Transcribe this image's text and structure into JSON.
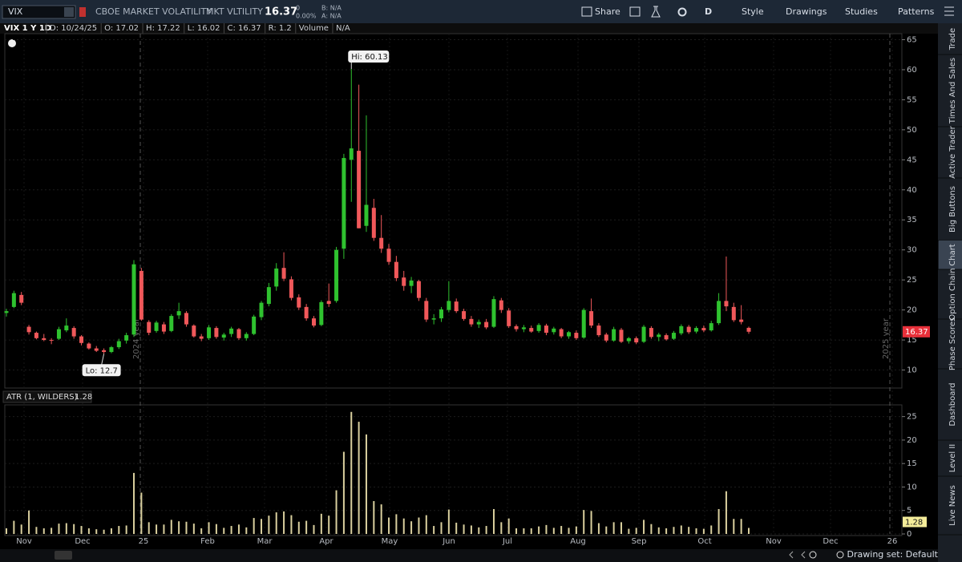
{
  "toolbar": {
    "symbol": "VIX",
    "description": "CBOE MARKET VOLATILITY",
    "exchange": "MKT VLTILITY",
    "last": "16.37",
    "change": "0",
    "change_pct": "0.00%",
    "bid": "B: N/A",
    "ask": "A: N/A",
    "buttons": [
      "Share",
      "D",
      "Style",
      "Drawings",
      "Studies",
      "Patterns"
    ]
  },
  "chart_data": [
    {
      "type": "candlestick",
      "title": "VIX 1 Y 1D",
      "info": [
        "D: 10/24/25",
        "O: 17.02",
        "H: 17.22",
        "L: 16.02",
        "C: 16.37",
        "R: 1.2",
        "Volume",
        "N/A"
      ],
      "ohlc": [
        [
          19.5,
          20.2,
          18.9,
          19.8
        ],
        [
          20.5,
          23.2,
          20.3,
          22.8
        ],
        [
          22.5,
          23,
          20.8,
          21.2
        ],
        [
          17.2,
          17.5,
          15.9,
          16.3
        ],
        [
          16.2,
          16.4,
          15.1,
          15.3
        ],
        [
          15.3,
          16,
          14.8,
          15.0
        ],
        [
          15.0,
          15.3,
          14.3,
          14.9
        ],
        [
          15.2,
          17.2,
          15.0,
          16.8
        ],
        [
          16.6,
          18.6,
          16.3,
          17.4
        ],
        [
          17.0,
          17.3,
          15.2,
          15.6
        ],
        [
          15.6,
          15.8,
          14.1,
          14.5
        ],
        [
          14.4,
          14.6,
          13.4,
          13.6
        ],
        [
          13.6,
          14.0,
          13.0,
          13.2
        ],
        [
          13.3,
          13.6,
          12.7,
          13.0
        ],
        [
          13.0,
          14.0,
          12.8,
          13.8
        ],
        [
          13.8,
          15.2,
          13.5,
          14.8
        ],
        [
          14.9,
          16.2,
          14.4,
          15.8
        ],
        [
          15.9,
          28.3,
          15.5,
          27.6
        ],
        [
          26.5,
          27.0,
          18.2,
          18.4
        ],
        [
          18.0,
          18.3,
          15.8,
          16.2
        ],
        [
          16.5,
          18.2,
          16.2,
          17.9
        ],
        [
          17.6,
          18.0,
          16.0,
          16.4
        ],
        [
          16.5,
          19.3,
          16.3,
          19.0
        ],
        [
          19.1,
          21.2,
          18.5,
          19.8
        ],
        [
          19.5,
          19.8,
          17.2,
          17.6
        ],
        [
          17.4,
          17.6,
          15.4,
          15.6
        ],
        [
          15.6,
          16.0,
          14.8,
          15.2
        ],
        [
          15.3,
          17.5,
          15.0,
          17.1
        ],
        [
          17.0,
          17.3,
          15.2,
          15.5
        ],
        [
          15.4,
          16.2,
          14.9,
          15.9
        ],
        [
          16.0,
          17.2,
          15.5,
          16.9
        ],
        [
          16.8,
          17.0,
          15.0,
          15.3
        ],
        [
          15.3,
          16.3,
          14.9,
          16.0
        ],
        [
          16.0,
          19.2,
          15.8,
          18.9
        ],
        [
          18.8,
          21.5,
          18.3,
          21.2
        ],
        [
          21.0,
          24.5,
          20.6,
          23.8
        ],
        [
          23.9,
          27.8,
          23.2,
          26.9
        ],
        [
          27.0,
          29.6,
          24.8,
          25.2
        ],
        [
          25.1,
          25.6,
          21.6,
          22.0
        ],
        [
          22.1,
          22.6,
          20.0,
          20.4
        ],
        [
          20.5,
          21.0,
          18.2,
          18.6
        ],
        [
          18.6,
          19.0,
          17.1,
          17.4
        ],
        [
          17.5,
          21.6,
          17.3,
          21.3
        ],
        [
          21.5,
          24.4,
          20.5,
          21.0
        ],
        [
          21.5,
          30.5,
          21.2,
          30.0
        ],
        [
          30.2,
          46.0,
          28.5,
          45.3
        ],
        [
          45.0,
          60.13,
          38.0,
          46.9
        ],
        [
          46.5,
          57.5,
          33.6,
          33.6
        ],
        [
          34.0,
          52.4,
          33.0,
          37.5
        ],
        [
          37.0,
          38.5,
          31.5,
          32.0
        ],
        [
          32.0,
          35.8,
          29.5,
          30.2
        ],
        [
          30.2,
          31.0,
          27.5,
          28.0
        ],
        [
          28.0,
          29.0,
          24.8,
          25.3
        ],
        [
          25.4,
          26.5,
          23.2,
          24.0
        ],
        [
          24.0,
          25.5,
          22.8,
          24.9
        ],
        [
          24.8,
          25.0,
          21.5,
          22.0
        ],
        [
          21.5,
          22.0,
          18.0,
          18.4
        ],
        [
          18.4,
          19.3,
          17.6,
          18.6
        ],
        [
          18.6,
          20.5,
          18.0,
          20.1
        ],
        [
          20.0,
          24.8,
          19.6,
          21.5
        ],
        [
          21.4,
          21.9,
          19.5,
          19.8
        ],
        [
          19.8,
          20.2,
          18.2,
          18.5
        ],
        [
          18.5,
          19.0,
          17.2,
          17.6
        ],
        [
          17.6,
          18.4,
          17.0,
          18.0
        ],
        [
          18.0,
          18.5,
          16.8,
          17.1
        ],
        [
          17.2,
          22.3,
          17.0,
          21.8
        ],
        [
          21.6,
          22.0,
          19.5,
          20.0
        ],
        [
          19.9,
          20.3,
          17.0,
          17.3
        ],
        [
          17.3,
          17.6,
          16.4,
          16.8
        ],
        [
          16.8,
          17.5,
          16.3,
          17.1
        ],
        [
          17.0,
          17.4,
          16.2,
          16.4
        ],
        [
          16.5,
          17.8,
          16.2,
          17.5
        ],
        [
          17.4,
          17.7,
          15.8,
          16.2
        ],
        [
          16.3,
          17.2,
          15.9,
          16.9
        ],
        [
          16.8,
          17.0,
          15.3,
          15.6
        ],
        [
          15.6,
          16.5,
          15.2,
          16.3
        ],
        [
          16.2,
          16.6,
          15.0,
          15.3
        ],
        [
          15.4,
          20.3,
          15.2,
          20.0
        ],
        [
          19.8,
          21.9,
          17.0,
          17.4
        ],
        [
          17.4,
          17.8,
          15.5,
          15.8
        ],
        [
          15.9,
          16.2,
          14.6,
          14.9
        ],
        [
          14.9,
          17.2,
          14.7,
          16.8
        ],
        [
          16.7,
          17.0,
          14.5,
          14.7
        ],
        [
          14.8,
          15.5,
          14.4,
          15.3
        ],
        [
          15.3,
          15.6,
          14.3,
          14.6
        ],
        [
          14.7,
          17.5,
          14.5,
          17.2
        ],
        [
          17.0,
          17.3,
          15.2,
          15.5
        ],
        [
          15.5,
          16.2,
          14.8,
          15.9
        ],
        [
          15.8,
          16.1,
          14.9,
          15.1
        ],
        [
          15.2,
          16.5,
          15.0,
          16.2
        ],
        [
          16.1,
          17.6,
          15.8,
          17.3
        ],
        [
          17.2,
          17.5,
          16.0,
          16.3
        ],
        [
          16.4,
          17.3,
          16.1,
          17.0
        ],
        [
          17.0,
          17.4,
          16.3,
          16.6
        ],
        [
          16.6,
          18.2,
          16.4,
          17.8
        ],
        [
          17.8,
          22.8,
          17.5,
          21.5
        ],
        [
          21.5,
          28.9,
          19.8,
          20.6
        ],
        [
          20.5,
          21.2,
          18.0,
          18.3
        ],
        [
          18.4,
          20.8,
          17.6,
          18.0
        ],
        [
          17.02,
          17.22,
          16.02,
          16.37
        ]
      ],
      "up_color": "#2fc22f",
      "down_color": "#f0585a",
      "ylim": [
        7,
        66
      ],
      "yticks": [
        10,
        15,
        20,
        25,
        30,
        35,
        40,
        45,
        50,
        55,
        60,
        65
      ],
      "xticks": [
        "Nov",
        "Dec",
        "25",
        "Feb",
        "Mar",
        "Apr",
        "May",
        "Jun",
        "Jul",
        "Aug",
        "Sep",
        "Oct",
        "Nov",
        "Dec",
        "26"
      ],
      "annotations": {
        "high": "Hi: 60.13",
        "low": "Lo: 12.7",
        "year_marks": [
          "2024 year",
          "2025 year"
        ]
      }
    },
    {
      "type": "bar",
      "title": "ATR (1, WILDERS)",
      "color": "#d9cf9e",
      "ylim": [
        0,
        27.5
      ],
      "yticks": [
        0,
        5,
        10,
        15,
        20,
        25
      ],
      "values": [
        1.2,
        2.8,
        2.0,
        5.0,
        1.5,
        1.2,
        1.3,
        2.2,
        2.3,
        2.1,
        1.7,
        1.2,
        1.0,
        0.9,
        1.2,
        1.7,
        1.8,
        13.0,
        8.8,
        2.5,
        2.0,
        2.0,
        3.0,
        2.7,
        2.6,
        2.2,
        1.2,
        2.5,
        2.1,
        1.3,
        1.7,
        2.0,
        1.4,
        3.4,
        3.2,
        3.9,
        4.6,
        4.8,
        4.0,
        2.6,
        2.8,
        1.9,
        4.3,
        3.9,
        9.3,
        17.5,
        26.0,
        23.9,
        21.2,
        7.0,
        6.3,
        3.5,
        4.2,
        3.3,
        2.7,
        3.5,
        4.0,
        1.7,
        2.5,
        5.2,
        2.4,
        2.0,
        1.8,
        1.4,
        1.7,
        5.3,
        2.5,
        3.3,
        1.2,
        1.2,
        1.2,
        1.6,
        1.9,
        1.3,
        1.7,
        1.3,
        1.6,
        5.1,
        4.9,
        2.3,
        1.6,
        2.5,
        2.5,
        1.1,
        1.3,
        3.0,
        2.1,
        1.4,
        1.2,
        1.5,
        1.8,
        1.5,
        1.2,
        1.1,
        1.8,
        5.3,
        9.1,
        3.2,
        3.2,
        1.28
      ]
    }
  ],
  "sidebar": [
    "Trade",
    "Times And Sales",
    "Active Trader",
    "Big Buttons",
    "Chart",
    "Option Chain",
    "Phase Scores",
    "Dashboard",
    "Level II",
    "Live News"
  ],
  "status": "Drawing set: Default"
}
